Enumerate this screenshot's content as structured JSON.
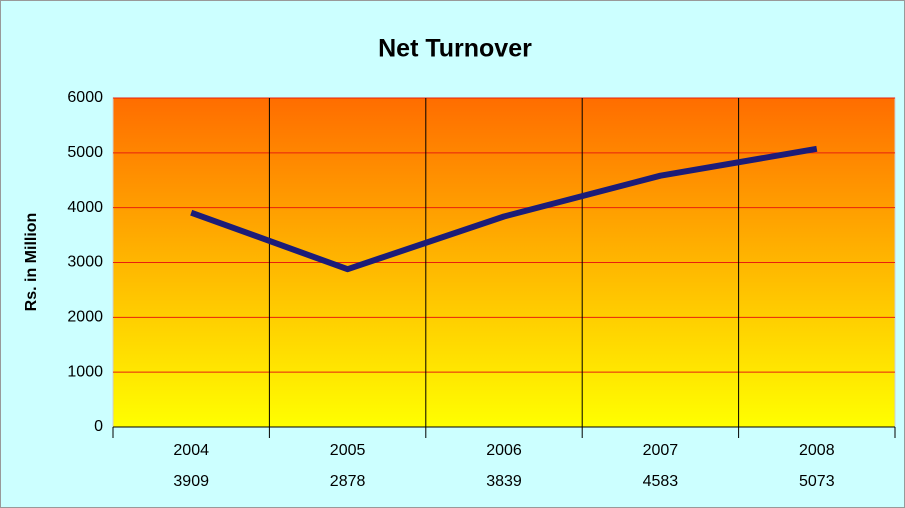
{
  "chart_data": {
    "type": "line",
    "title": "Net Turnover",
    "y_label": "Rs. in Million",
    "categories": [
      "2004",
      "2005",
      "2006",
      "2007",
      "2008"
    ],
    "series": [
      {
        "name": "Net Turnover",
        "color": "#1c1c78",
        "values": [
          3909,
          2878,
          3839,
          4583,
          5073
        ]
      }
    ],
    "ylim": [
      0,
      6000
    ],
    "yticks": [
      0,
      1000,
      2000,
      3000,
      4000,
      5000,
      6000
    ],
    "grid": true,
    "grid_color": "#e8200c",
    "background": "#ccffff"
  }
}
